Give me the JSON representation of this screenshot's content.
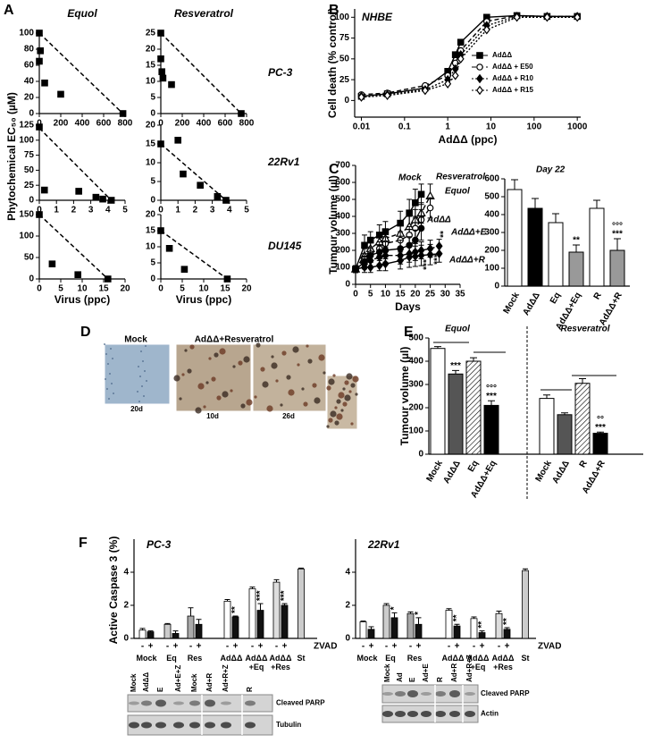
{
  "panel_labels": [
    "A",
    "B",
    "C",
    "D",
    "E",
    "F"
  ],
  "panel_a": {
    "columns": [
      "Equol",
      "Resveratrol"
    ],
    "rows": [
      "PC-3",
      "22Rv1",
      "DU145"
    ],
    "y_label": "Phytochemical EC₅₀ (µM)",
    "x_label": "Virus (ppc)"
  },
  "panel_d": {
    "labels": [
      "Mock",
      "AdΔΔ+Resveratrol"
    ],
    "times": [
      "20d",
      "10d",
      "26d"
    ]
  },
  "panel_f": {
    "y_label": "Active Caspase 3 (%)",
    "treatment": "ZVAD"
  },
  "blots": [
    {
      "lanes": [
        "Mock",
        "AdΔΔ",
        "E",
        "Ad+E+Z",
        "Mock",
        "Ad+R",
        "Ad+R+Z",
        "R"
      ],
      "bands": [
        "Cleaved PARP",
        "Tubulin"
      ]
    },
    {
      "lanes": [
        "Mock",
        "Ad",
        "E",
        "Ad+E",
        "R",
        "Ad+R",
        "Ad+R+Z"
      ],
      "bands": [
        "Cleaved PARP",
        "Actin"
      ]
    }
  ],
  "chart_data": [
    {
      "type": "scatter",
      "marker": "square",
      "color": "#000",
      "x": [
        0,
        10,
        0,
        50,
        200,
        780
      ],
      "values": [
        100,
        78,
        65,
        38,
        24,
        0
      ],
      "line": {
        "x": [
          0,
          780
        ],
        "values": [
          100,
          0
        ]
      },
      "xlim": [
        0,
        800
      ],
      "xticks": [
        0,
        200,
        400,
        600,
        800
      ],
      "ylim": [
        0,
        100
      ],
      "yticks": [
        0,
        20,
        40,
        60,
        80,
        100
      ]
    },
    {
      "type": "scatter",
      "marker": "square",
      "color": "#000",
      "x": [
        0,
        0,
        10,
        20,
        100,
        750
      ],
      "values": [
        25,
        17,
        13,
        11,
        9,
        0
      ],
      "line": {
        "x": [
          0,
          750
        ],
        "values": [
          25,
          0
        ]
      },
      "xlim": [
        0,
        800
      ],
      "xticks": [
        0,
        200,
        400,
        600,
        800
      ],
      "ylim": [
        0,
        25
      ],
      "yticks": [
        0,
        5,
        10,
        15,
        20,
        25
      ]
    },
    {
      "type": "scatter",
      "marker": "square",
      "color": "#000",
      "x": [
        0,
        0.3,
        2.3,
        3.3,
        3.7,
        4.2
      ],
      "values": [
        122,
        17,
        15,
        5,
        2,
        0
      ],
      "line": {
        "x": [
          0,
          4.2
        ],
        "values": [
          120,
          0
        ]
      },
      "xlim": [
        0,
        5
      ],
      "xticks": [
        0,
        1,
        2,
        3,
        4,
        5
      ],
      "ylim": [
        0,
        125
      ],
      "yticks": [
        0,
        25,
        50,
        75,
        100,
        125
      ]
    },
    {
      "type": "scatter",
      "marker": "square",
      "color": "#000",
      "x": [
        0,
        1.0,
        1.3,
        2.3,
        3.3,
        3.8
      ],
      "values": [
        15,
        16,
        7,
        4,
        1,
        0
      ],
      "line": {
        "x": [
          0,
          3.8
        ],
        "values": [
          15,
          0
        ]
      },
      "xlim": [
        0,
        5
      ],
      "xticks": [
        0,
        1,
        2,
        3,
        4,
        5
      ],
      "ylim": [
        0,
        20
      ],
      "yticks": [
        0,
        5,
        10,
        15,
        20
      ]
    },
    {
      "type": "scatter",
      "marker": "square",
      "color": "#000",
      "x": [
        0,
        3,
        9,
        16
      ],
      "values": [
        150,
        35,
        10,
        0
      ],
      "line": {
        "x": [
          0,
          16
        ],
        "values": [
          150,
          0
        ]
      },
      "xlim": [
        0,
        20
      ],
      "xticks": [
        0,
        5,
        10,
        15,
        20
      ],
      "ylim": [
        0,
        150
      ],
      "yticks": [
        0,
        50,
        100,
        150
      ]
    },
    {
      "type": "scatter",
      "marker": "square",
      "color": "#000",
      "x": [
        0,
        2,
        5.5,
        15.5
      ],
      "values": [
        15,
        9.5,
        3,
        0
      ],
      "line": {
        "x": [
          0,
          15.5
        ],
        "values": [
          15,
          0
        ]
      },
      "xlim": [
        0,
        20
      ],
      "xticks": [
        0,
        5,
        10,
        15,
        20
      ],
      "ylim": [
        0,
        20
      ],
      "yticks": [
        0,
        5,
        10,
        15,
        20
      ]
    },
    {
      "type": "line",
      "title": "NHBE",
      "x_label": "AdΔΔ (ppc)",
      "y_label": "Cell death (% control)",
      "log_x": true,
      "legend": "right",
      "x": [
        0.01,
        0.04,
        0.3,
        1,
        1.5,
        2,
        8,
        40,
        200,
        1000
      ],
      "xlim": [
        0.007,
        1200
      ],
      "xticks": [
        0.01,
        0.1,
        1,
        10,
        100,
        1000
      ],
      "ylim": [
        -20,
        110
      ],
      "yticks": [
        0,
        25,
        50,
        75,
        100
      ],
      "series": [
        {
          "name": "AdΔΔ",
          "color": "#000",
          "marker": "square",
          "filled": true,
          "dash": "solid",
          "values": [
            5,
            8,
            15,
            35,
            55,
            70,
            100,
            102,
            101,
            101
          ]
        },
        {
          "name": "AdΔΔ + E50",
          "color": "#000",
          "marker": "circle",
          "filled": false,
          "dash": "dashed",
          "values": [
            7,
            9,
            18,
            30,
            45,
            60,
            95,
            102,
            101,
            101
          ]
        },
        {
          "name": "AdΔΔ + R10",
          "color": "#000",
          "marker": "diamond",
          "filled": true,
          "dash": "dotted",
          "values": [
            5,
            7,
            13,
            25,
            38,
            55,
            90,
            101,
            101,
            101
          ]
        },
        {
          "name": "AdΔΔ + R15",
          "color": "#000",
          "marker": "diamond",
          "filled": false,
          "dash": "dotted",
          "values": [
            4,
            6,
            12,
            20,
            30,
            50,
            85,
            100,
            100,
            100
          ]
        }
      ]
    },
    {
      "type": "line",
      "x_label": "Days",
      "y_label": "Tumour volume (µl)",
      "x": [
        0,
        3,
        5,
        8,
        10,
        15,
        18,
        20,
        22,
        25,
        28
      ],
      "xlim": [
        0,
        35
      ],
      "xticks": [
        0,
        5,
        10,
        15,
        20,
        25,
        30,
        35
      ],
      "ylim": [
        0,
        700
      ],
      "yticks": [
        0,
        100,
        200,
        300,
        400,
        500,
        600,
        700
      ],
      "annotations": [
        "***",
        "***",
        "**"
      ],
      "series": [
        {
          "name": "Mock",
          "color": "#000",
          "marker": "square",
          "filled": true,
          "dash": "solid",
          "values": [
            90,
            230,
            260,
            290,
            310,
            360,
            420,
            480,
            530,
            null,
            null
          ],
          "errors": [
            20,
            60,
            50,
            60,
            60,
            70,
            80,
            80,
            60,
            null,
            null
          ]
        },
        {
          "name": "Resveratrol",
          "color": "#000",
          "marker": "triangle",
          "filled": false,
          "dash": "dashed",
          "values": [
            90,
            170,
            210,
            250,
            270,
            300,
            340,
            380,
            420,
            520,
            null
          ],
          "errors": [
            20,
            40,
            40,
            40,
            50,
            50,
            60,
            60,
            60,
            70,
            null
          ]
        },
        {
          "name": "Equol",
          "color": "#000",
          "marker": "circle",
          "filled": false,
          "dash": "dashed",
          "values": [
            90,
            150,
            180,
            210,
            240,
            260,
            290,
            330,
            380,
            450,
            null
          ],
          "errors": [
            20,
            30,
            40,
            40,
            40,
            50,
            50,
            60,
            60,
            60,
            null
          ]
        },
        {
          "name": "AdΔΔ",
          "color": "#000",
          "marker": "circle",
          "filled": true,
          "dash": "solid",
          "values": [
            90,
            130,
            170,
            190,
            200,
            210,
            230,
            260,
            330,
            null,
            null
          ],
          "errors": [
            20,
            30,
            40,
            40,
            50,
            50,
            50,
            60,
            70,
            null,
            null
          ]
        },
        {
          "name": "AdΔΔ+E",
          "color": "#000",
          "marker": "diamond",
          "filled": true,
          "dash": "dashed",
          "values": [
            90,
            120,
            140,
            160,
            170,
            170,
            180,
            190,
            200,
            210,
            225
          ],
          "errors": [
            20,
            30,
            40,
            40,
            40,
            50,
            50,
            50,
            50,
            50,
            40
          ]
        },
        {
          "name": "AdΔΔ+R",
          "color": "#000",
          "marker": "diamond",
          "filled": true,
          "dash": "solid",
          "values": [
            90,
            100,
            100,
            110,
            120,
            140,
            160,
            165,
            170,
            175,
            180
          ],
          "errors": [
            20,
            30,
            30,
            30,
            40,
            50,
            60,
            60,
            60,
            60,
            50
          ]
        }
      ]
    },
    {
      "type": "bar",
      "title": "Day 22",
      "categories": [
        "Mock",
        "AdΔΔ",
        "Eq",
        "AdΔΔ+Eq",
        "R",
        "AdΔΔ+R"
      ],
      "values": [
        540,
        435,
        355,
        190,
        435,
        200
      ],
      "errors": [
        55,
        55,
        50,
        40,
        45,
        65
      ],
      "colors": [
        "#fff",
        "#000",
        "#fff",
        "#999",
        "#fff",
        "#999"
      ],
      "significance": [
        null,
        null,
        null,
        "**",
        null,
        "***"
      ],
      "significance_vs_agent": [
        null,
        null,
        null,
        null,
        null,
        "°°°"
      ],
      "ylim": [
        0,
        600
      ],
      "yticks": [
        0,
        100,
        200,
        300,
        400,
        500,
        600
      ]
    },
    {
      "type": "bar",
      "y_label": "Tumour volume (µl)",
      "groups": [
        "Equol",
        "Resveratrol"
      ],
      "categories": [
        "Mock",
        "AdΔΔ",
        "Eq",
        "AdΔΔ+Eq",
        "Mock",
        "AdΔΔ",
        "R",
        "AdΔΔ+R"
      ],
      "values": [
        455,
        345,
        400,
        210,
        240,
        170,
        305,
        90
      ],
      "errors": [
        8,
        15,
        15,
        20,
        15,
        8,
        20,
        5
      ],
      "colors": [
        "#fff",
        "#555",
        "#fff",
        "#000",
        "#fff",
        "#555",
        "#fff",
        "#000"
      ],
      "hatch": [
        false,
        false,
        true,
        false,
        false,
        false,
        true,
        false
      ],
      "significance": [
        null,
        "***",
        null,
        "***",
        null,
        null,
        null,
        "***"
      ],
      "significance_vs_agent": [
        null,
        null,
        null,
        "°°°",
        null,
        null,
        null,
        "°°"
      ],
      "ylim": [
        0,
        500
      ],
      "yticks": [
        0,
        100,
        200,
        300,
        400,
        500
      ]
    },
    {
      "type": "groupedbar",
      "title": "PC-3",
      "categories": [
        "Mock",
        "Eq",
        "Res",
        "AdΔΔ",
        "AdΔΔ\n+Eq",
        "AdΔΔ\n+Res",
        "St"
      ],
      "ylim": [
        0,
        6
      ],
      "yticks": [
        0,
        2,
        4
      ],
      "series": [
        {
          "name": "-",
          "colors": [
            "#fff",
            "#ccc",
            "#aaa",
            "#fff",
            "#fff",
            "#ddd",
            "#ccc"
          ],
          "values": [
            0.5,
            0.85,
            1.35,
            2.25,
            3.0,
            3.4,
            4.2
          ],
          "errors": [
            0.1,
            0.05,
            0.5,
            0.1,
            0.1,
            0.15,
            0.05
          ]
        },
        {
          "name": "+",
          "color": "#111",
          "values": [
            0.4,
            0.3,
            0.85,
            1.3,
            1.7,
            2.0,
            null
          ],
          "errors": [
            0.05,
            0.15,
            0.3,
            0.05,
            0.4,
            0.1,
            null
          ],
          "significance": [
            null,
            null,
            null,
            "**",
            "***",
            "***",
            null
          ]
        }
      ]
    },
    {
      "type": "groupedbar",
      "title": "22Rv1",
      "categories": [
        "Mock",
        "Eq",
        "Res",
        "AdΔΔ",
        "AdΔΔ\n+Eq",
        "AdΔΔ\n+Res",
        "St"
      ],
      "ylim": [
        0,
        6
      ],
      "yticks": [
        0,
        2,
        4
      ],
      "series": [
        {
          "name": "-",
          "colors": [
            "#fff",
            "#ccc",
            "#aaa",
            "#fff",
            "#fff",
            "#ddd",
            "#ccc"
          ],
          "values": [
            1.0,
            2.0,
            1.5,
            1.7,
            1.2,
            1.5,
            4.1
          ],
          "errors": [
            0.05,
            0.1,
            0.1,
            0.1,
            0.1,
            0.15,
            0.1
          ]
        },
        {
          "name": "+",
          "color": "#111",
          "values": [
            0.55,
            1.25,
            0.85,
            0.75,
            0.35,
            0.55,
            null
          ],
          "errors": [
            0.15,
            0.3,
            0.4,
            0.1,
            0.1,
            0.1,
            null
          ],
          "significance": [
            null,
            "*",
            "*",
            "**",
            "**",
            "**",
            null
          ]
        }
      ]
    }
  ]
}
